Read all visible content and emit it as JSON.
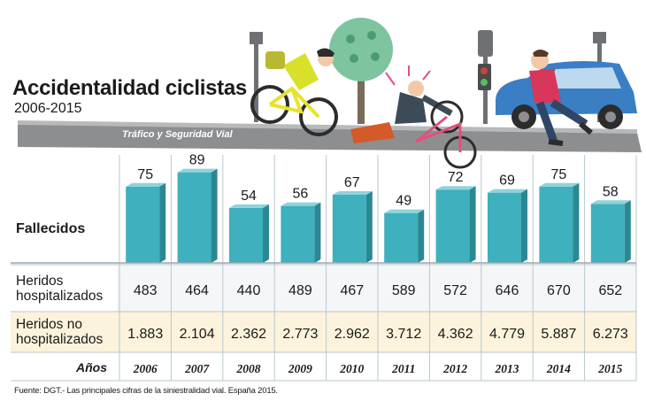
{
  "header": {
    "title": "Accidentalidad ciclistas",
    "subtitle": "2006-2015",
    "brand": "Tráfico y Seguridad Vial"
  },
  "rows": {
    "deaths_label": "Fallecidos",
    "hospitalized_label": "Heridos\nhospitalizados",
    "not_hospitalized_label": "Heridos no\nhospitalizados",
    "years_label": "Años"
  },
  "source": "Fuente: DGT.- Las principales cifras de la siniestralidad vial. España 2015.",
  "colors": {
    "bar_front": "#3fb0bd",
    "bar_side": "#2b8893",
    "bar_top": "#8fd3db",
    "cream_row": "#fbf3dc",
    "grid": "#b9c7cf"
  },
  "chart_data": {
    "type": "bar",
    "categories": [
      "2006",
      "2007",
      "2008",
      "2009",
      "2010",
      "2011",
      "2012",
      "2013",
      "2014",
      "2015"
    ],
    "series": [
      {
        "name": "Fallecidos",
        "values": [
          75,
          89,
          54,
          56,
          67,
          49,
          72,
          69,
          75,
          58
        ]
      }
    ],
    "table_rows": [
      {
        "name": "Heridos hospitalizados",
        "values": [
          "483",
          "464",
          "440",
          "489",
          "467",
          "589",
          "572",
          "646",
          "670",
          "652"
        ]
      },
      {
        "name": "Heridos no hospitalizados",
        "values": [
          "1.883",
          "2.104",
          "2.362",
          "2.773",
          "2.962",
          "3.712",
          "4.362",
          "4.779",
          "5.887",
          "6.273"
        ]
      }
    ],
    "ylim": [
      0,
      100
    ],
    "grid": false,
    "xlabel": "Años",
    "ylabel": ""
  }
}
